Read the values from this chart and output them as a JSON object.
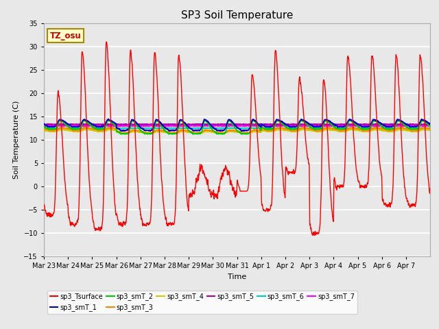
{
  "title": "SP3 Soil Temperature",
  "ylabel": "Soil Temperature (C)",
  "xlabel": "Time",
  "ylim": [
    -15,
    35
  ],
  "yticks": [
    -15,
    -10,
    -5,
    0,
    5,
    10,
    15,
    20,
    25,
    30,
    35
  ],
  "tz_label": "TZ_osu",
  "bg_color": "#e8e8e8",
  "legend_colors": {
    "sp3_Tsurface": "#ff0000",
    "sp3_smT_1": "#0000cc",
    "sp3_smT_2": "#00cc00",
    "sp3_smT_3": "#ff8800",
    "sp3_smT_4": "#cccc00",
    "sp3_smT_5": "#aa00aa",
    "sp3_smT_6": "#00cccc",
    "sp3_smT_7": "#ff00ff"
  },
  "x_tick_labels": [
    "Mar 23",
    "Mar 24",
    "Mar 25",
    "Mar 26",
    "Mar 27",
    "Mar 28",
    "Mar 29",
    "Mar 30",
    "Mar 31",
    "Apr 1",
    "Apr 2",
    "Apr 3",
    "Apr 4",
    "Apr 5",
    "Apr 6",
    "Apr 7"
  ],
  "n_days": 16,
  "pts_per_day": 144
}
